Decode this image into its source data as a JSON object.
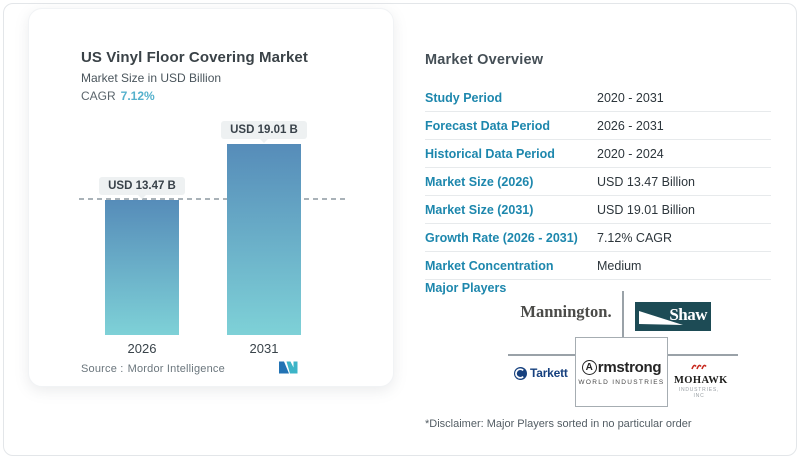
{
  "chart_card": {
    "title": "US Vinyl Floor Covering Market",
    "subtitle": "Market Size in USD Billion",
    "cagr_label": "CAGR",
    "cagr_value": "7.12%",
    "source_label": "Source :",
    "source_value": "Mordor Intelligence"
  },
  "chart_data": {
    "type": "bar",
    "title": "US Vinyl Floor Covering Market",
    "subtitle": "Market Size in USD Billion",
    "unit": "USD Billion",
    "cagr": "7.12%",
    "categories": [
      "2026",
      "2031"
    ],
    "values": [
      13.47,
      19.01
    ],
    "bar_labels": [
      "USD 13.47 B",
      "USD 19.01 B"
    ],
    "reference_line": {
      "at_value": 13.47,
      "style": "dashed"
    },
    "bar_gradient": [
      "#568cb9",
      "#7ed1d7"
    ],
    "grid": "off",
    "legend": "none"
  },
  "overview": {
    "heading": "Market Overview",
    "rows": [
      {
        "label": "Study Period",
        "value": "2020 - 2031"
      },
      {
        "label": "Forecast Data Period",
        "value": "2026 - 2031"
      },
      {
        "label": "Historical Data Period",
        "value": "2020 - 2024"
      },
      {
        "label": "Market Size (2026)",
        "value": "USD 13.47 Billion"
      },
      {
        "label": "Market Size (2031)",
        "value": "USD 19.01 Billion"
      },
      {
        "label": "Growth Rate (2026 - 2031)",
        "value": "7.12% CAGR"
      },
      {
        "label": "Market Concentration",
        "value": "Medium"
      }
    ],
    "major_players_label": "Major Players",
    "disclaimer": "*Disclaimer: Major Players sorted in no particular order"
  },
  "logos": {
    "mannington": "Mannington.",
    "shaw": "Shaw",
    "armstrong_a": "A",
    "armstrong_rest": "rmstrong",
    "armstrong_sub": "WORLD INDUSTRIES",
    "tarkett": "Tarkett",
    "mohawk_name": "MOHAWK",
    "mohawk_sub": "INDUSTRIES, INC"
  },
  "colors": {
    "accent_blue": "#1d87ad",
    "cagr_teal": "#55b1cc",
    "bar_top": "#568cb9",
    "bar_bottom": "#7ed1d7",
    "pill_bg": "#eef1f2",
    "divider": "#e7eaec",
    "shaw_bg": "#1d4b55",
    "tarkett_navy": "#16407e",
    "mohawk_red": "#c8281e",
    "mordor_blue": "#2273b4",
    "mordor_teal": "#3cb4c7"
  }
}
